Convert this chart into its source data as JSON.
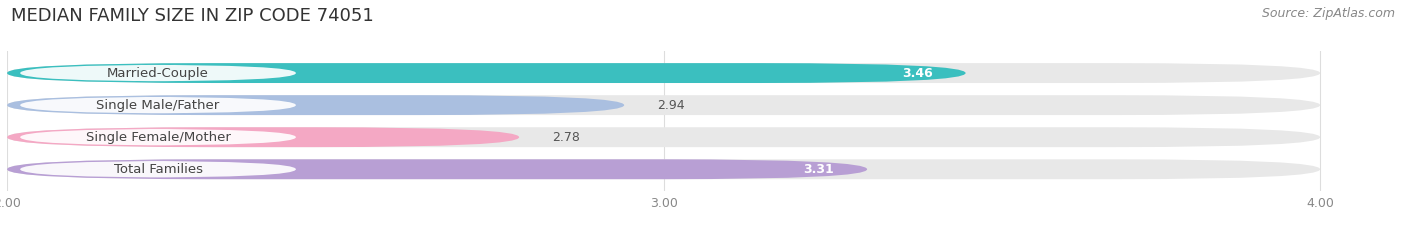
{
  "title": "MEDIAN FAMILY SIZE IN ZIP CODE 74051",
  "source": "Source: ZipAtlas.com",
  "categories": [
    "Married-Couple",
    "Single Male/Father",
    "Single Female/Mother",
    "Total Families"
  ],
  "values": [
    3.46,
    2.94,
    2.78,
    3.31
  ],
  "bar_colors": [
    "#3bbfbf",
    "#aabfe0",
    "#f4a8c4",
    "#b89fd4"
  ],
  "value_colors": [
    "#ffffff",
    "#555555",
    "#555555",
    "#ffffff"
  ],
  "value_inside": [
    true,
    false,
    false,
    true
  ],
  "xlim_min": 2.0,
  "xlim_max": 4.0,
  "xticks": [
    2.0,
    3.0,
    4.0
  ],
  "xtick_labels": [
    "2.00",
    "3.00",
    "4.00"
  ],
  "bar_height": 0.62,
  "track_color": "#e8e8e8",
  "background_color": "#ffffff",
  "plot_bg_color": "#ffffff",
  "title_fontsize": 13,
  "source_fontsize": 9,
  "label_fontsize": 9.5,
  "value_fontsize": 9,
  "tick_fontsize": 9,
  "grid_color": "#dddddd",
  "label_box_color": "#ffffff",
  "label_text_color": "#444444",
  "tick_color": "#888888"
}
